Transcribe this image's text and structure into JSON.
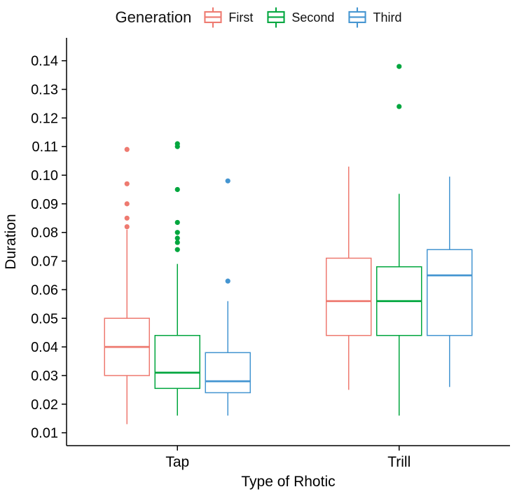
{
  "legend": {
    "title": "Generation",
    "entries": [
      {
        "label": "First",
        "color": "#EE7A70"
      },
      {
        "label": "Second",
        "color": "#00A63E"
      },
      {
        "label": "Third",
        "color": "#4495D1"
      }
    ]
  },
  "chart_data": {
    "type": "boxplot",
    "title": "",
    "xlabel": "Type of Rhotic",
    "ylabel": "Duration",
    "ylim": [
      0.0055,
      0.148
    ],
    "yticks": [
      0.01,
      0.02,
      0.03,
      0.04,
      0.05,
      0.06,
      0.07,
      0.08,
      0.09,
      0.1,
      0.11,
      0.12,
      0.13,
      0.14
    ],
    "categories": [
      "Tap",
      "Trill"
    ],
    "grid": false,
    "legend_position": "top",
    "series": [
      {
        "name": "First",
        "color": "#EE7A70",
        "boxes": [
          {
            "category": "Tap",
            "whisker_low": 0.013,
            "q1": 0.03,
            "median": 0.04,
            "q3": 0.05,
            "whisker_high": 0.081,
            "outliers": [
              0.082,
              0.085,
              0.09,
              0.097,
              0.109
            ]
          },
          {
            "category": "Trill",
            "whisker_low": 0.025,
            "q1": 0.044,
            "median": 0.056,
            "q3": 0.071,
            "whisker_high": 0.103,
            "outliers": []
          }
        ]
      },
      {
        "name": "Second",
        "color": "#00A63E",
        "boxes": [
          {
            "category": "Tap",
            "whisker_low": 0.016,
            "q1": 0.0255,
            "median": 0.031,
            "q3": 0.044,
            "whisker_high": 0.069,
            "outliers": [
              0.074,
              0.0765,
              0.078,
              0.08,
              0.0835,
              0.095,
              0.11,
              0.111
            ]
          },
          {
            "category": "Trill",
            "whisker_low": 0.016,
            "q1": 0.044,
            "median": 0.056,
            "q3": 0.068,
            "whisker_high": 0.0935,
            "outliers": [
              0.124,
              0.138
            ]
          }
        ]
      },
      {
        "name": "Third",
        "color": "#4495D1",
        "boxes": [
          {
            "category": "Tap",
            "whisker_low": 0.016,
            "q1": 0.024,
            "median": 0.028,
            "q3": 0.038,
            "whisker_high": 0.056,
            "outliers": [
              0.063,
              0.098
            ]
          },
          {
            "category": "Trill",
            "whisker_low": 0.026,
            "q1": 0.044,
            "median": 0.065,
            "q3": 0.074,
            "whisker_high": 0.0995,
            "outliers": []
          }
        ]
      }
    ]
  }
}
